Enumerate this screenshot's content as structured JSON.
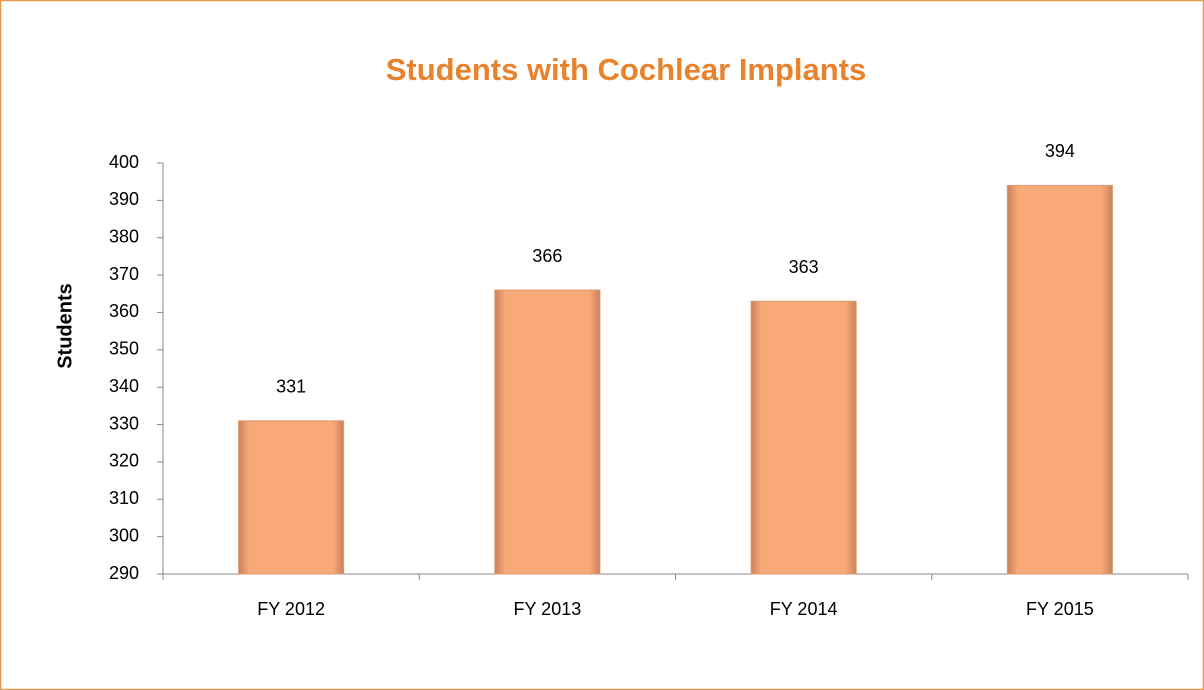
{
  "chart_data": {
    "type": "bar",
    "title": "Students with Cochlear Implants",
    "y_label": "Students",
    "categories": [
      "FY 2012",
      "FY 2013",
      "FY 2014",
      "FY 2015"
    ],
    "values": [
      331,
      366,
      363,
      394
    ],
    "color": "#f9a878",
    "ylim": [
      290,
      400
    ],
    "yticks": [
      290,
      300,
      310,
      320,
      330,
      340,
      350,
      360,
      370,
      380,
      390,
      400
    ],
    "grid": false
  }
}
